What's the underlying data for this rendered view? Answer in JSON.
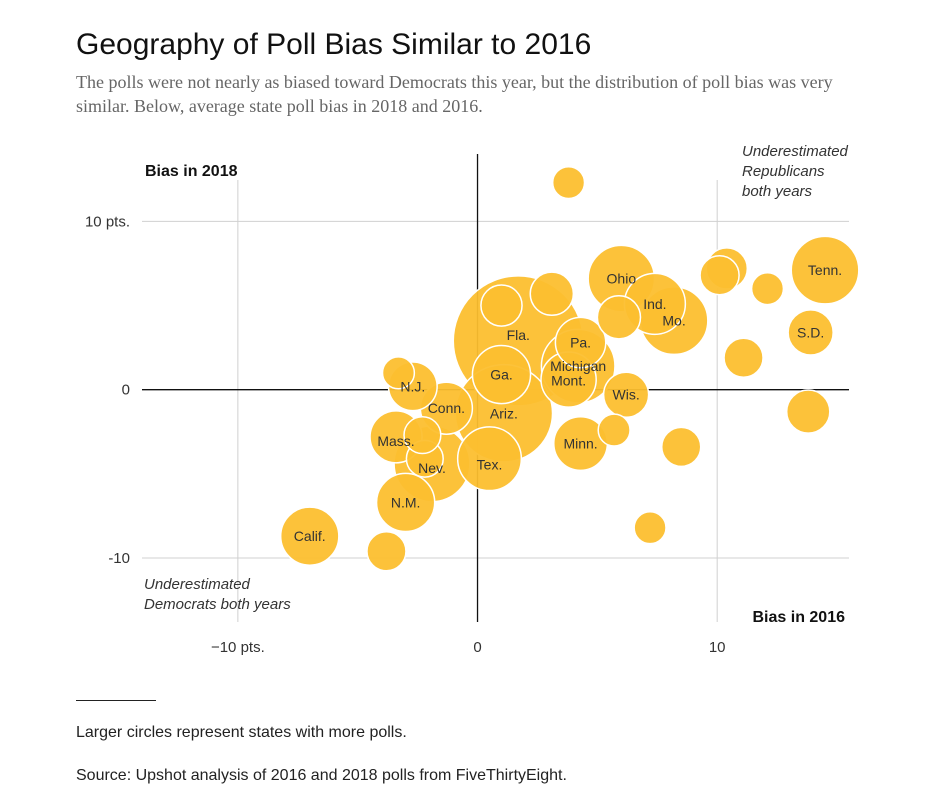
{
  "header": {
    "title": "Geography of Poll Bias Similar to 2016",
    "subtitle": "The polls were not nearly as biased toward Democrats this year, but the distribution of poll bias was very similar. Below, average state poll bias in 2018 and 2016."
  },
  "footer": {
    "note": "Larger circles represent states with more polls.",
    "source": "Source: Upshot analysis of 2016 and 2018 polls from FiveThirtyEight."
  },
  "chart_data": {
    "type": "scatter",
    "xlabel": "Bias in 2016",
    "ylabel": "Bias in 2018",
    "xlim": [
      -14,
      15.5
    ],
    "ylim": [
      -13.8,
      14
    ],
    "x_ticks": [
      {
        "value": -10,
        "label": "−10 pts."
      },
      {
        "value": 0,
        "label": "0"
      },
      {
        "value": 10,
        "label": "10"
      }
    ],
    "y_ticks": [
      {
        "value": 10,
        "label": "10 pts."
      },
      {
        "value": 0,
        "label": "0"
      },
      {
        "value": -10,
        "label": "-10"
      }
    ],
    "grid": true,
    "color": "#fcbf2f",
    "annotations": {
      "top_right": [
        "Underestimated",
        "Republicans",
        "both years"
      ],
      "bottom_left": [
        "Underestimated",
        "Democrats both years"
      ]
    },
    "points": [
      {
        "label": "Fla.",
        "x": 1.7,
        "y": 2.9,
        "size": 100
      },
      {
        "label": "Ariz.",
        "x": 1.1,
        "y": -1.4,
        "size": 56
      },
      {
        "label": "Nev.",
        "x": -1.9,
        "y": -4.4,
        "size": 34
      },
      {
        "label": "Michigan",
        "x": 4.2,
        "y": 1.4,
        "size": 32
      },
      {
        "label": "Tenn.",
        "x": 14.5,
        "y": 7.1,
        "size": 27
      },
      {
        "label": "Mo.",
        "x": 8.2,
        "y": 4.1,
        "size": 27
      },
      {
        "label": "Ohio",
        "x": 6.0,
        "y": 6.6,
        "size": 26
      },
      {
        "label": "Tex.",
        "x": 0.5,
        "y": -4.1,
        "size": 24
      },
      {
        "label": "Ind.",
        "x": 7.4,
        "y": 5.1,
        "size": 22
      },
      {
        "label": "Calif.",
        "x": -7.0,
        "y": -8.7,
        "size": 20
      },
      {
        "label": "Ga.",
        "x": 1.0,
        "y": 0.9,
        "size": 20
      },
      {
        "label": "N.M.",
        "x": -3.0,
        "y": -6.7,
        "size": 20
      },
      {
        "label": "Mont.",
        "x": 3.8,
        "y": 0.6,
        "size": 18
      },
      {
        "label": "Minn.",
        "x": 4.3,
        "y": -3.2,
        "size": 17
      },
      {
        "label": "Conn.",
        "x": -1.3,
        "y": -1.1,
        "size": 16
      },
      {
        "label": "Mass.",
        "x": -3.4,
        "y": -2.8,
        "size": 16
      },
      {
        "label": "Pa.",
        "x": 4.3,
        "y": 2.8,
        "size": 15
      },
      {
        "label": "N.J.",
        "x": -2.7,
        "y": 0.2,
        "size": 14
      },
      {
        "label": "Wis.",
        "x": 6.2,
        "y": -0.3,
        "size": 12
      },
      {
        "label": "S.D.",
        "x": 13.9,
        "y": 3.4,
        "size": 12
      },
      {
        "label": "",
        "x": 3.1,
        "y": 5.7,
        "size": 11
      },
      {
        "label": "",
        "x": 13.8,
        "y": -1.3,
        "size": 11
      },
      {
        "label": "",
        "x": 5.9,
        "y": 4.3,
        "size": 11
      },
      {
        "label": "",
        "x": 10.4,
        "y": 7.2,
        "size": 10
      },
      {
        "label": "",
        "x": 1.0,
        "y": 5.0,
        "size": 10
      },
      {
        "label": "",
        "x": 11.1,
        "y": 1.9,
        "size": 9
      },
      {
        "label": "",
        "x": 8.5,
        "y": -3.4,
        "size": 9
      },
      {
        "label": "",
        "x": -3.8,
        "y": -9.6,
        "size": 9
      },
      {
        "label": "",
        "x": 10.1,
        "y": 6.8,
        "size": 9
      },
      {
        "label": "",
        "x": -2.2,
        "y": -4.1,
        "size": 8
      },
      {
        "label": "",
        "x": -2.3,
        "y": -2.7,
        "size": 8
      },
      {
        "label": "",
        "x": 3.8,
        "y": 12.3,
        "size": 6
      },
      {
        "label": "",
        "x": 12.1,
        "y": 6.0,
        "size": 6
      },
      {
        "label": "",
        "x": 7.2,
        "y": -8.2,
        "size": 6
      },
      {
        "label": "",
        "x": 5.7,
        "y": -2.4,
        "size": 6
      },
      {
        "label": "",
        "x": -3.3,
        "y": 1.0,
        "size": 6
      }
    ]
  }
}
